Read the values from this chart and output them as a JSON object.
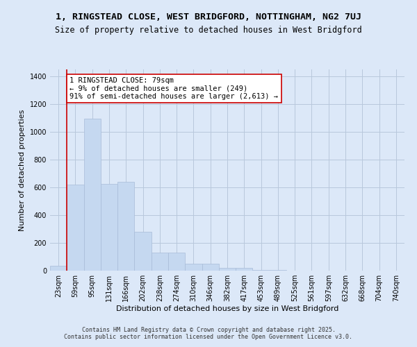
{
  "title": "1, RINGSTEAD CLOSE, WEST BRIDGFORD, NOTTINGHAM, NG2 7UJ",
  "subtitle": "Size of property relative to detached houses in West Bridgford",
  "xlabel": "Distribution of detached houses by size in West Bridgford",
  "ylabel": "Number of detached properties",
  "bins": [
    "23sqm",
    "59sqm",
    "95sqm",
    "131sqm",
    "166sqm",
    "202sqm",
    "238sqm",
    "274sqm",
    "310sqm",
    "346sqm",
    "382sqm",
    "417sqm",
    "453sqm",
    "489sqm",
    "525sqm",
    "561sqm",
    "597sqm",
    "632sqm",
    "668sqm",
    "704sqm",
    "740sqm"
  ],
  "values": [
    35,
    620,
    1095,
    625,
    640,
    280,
    130,
    130,
    50,
    50,
    22,
    22,
    7,
    5,
    0,
    0,
    0,
    0,
    0,
    0,
    0
  ],
  "bar_color": "#c5d8f0",
  "bar_edge_color": "#a8bcd8",
  "vline_color": "#cc0000",
  "vline_pos": 0.5,
  "annotation_text": "1 RINGSTEAD CLOSE: 79sqm\n← 9% of detached houses are smaller (249)\n91% of semi-detached houses are larger (2,613) →",
  "annotation_box_color": "#ffffff",
  "annotation_box_edge": "#cc0000",
  "ylim": [
    0,
    1450
  ],
  "yticks": [
    0,
    200,
    400,
    600,
    800,
    1000,
    1200,
    1400
  ],
  "bg_color": "#dce8f8",
  "grid_color": "#b8c8dc",
  "footer": "Contains HM Land Registry data © Crown copyright and database right 2025.\nContains public sector information licensed under the Open Government Licence v3.0.",
  "title_fontsize": 9.5,
  "subtitle_fontsize": 8.5,
  "ylabel_fontsize": 8,
  "xlabel_fontsize": 8,
  "footer_fontsize": 6,
  "tick_fontsize": 7,
  "annot_fontsize": 7.5
}
